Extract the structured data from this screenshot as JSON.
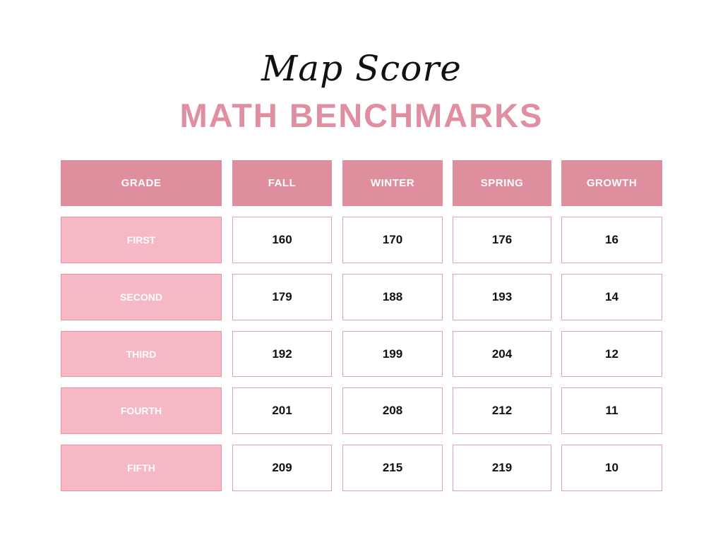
{
  "header": {
    "script_title": "Map Score",
    "title": "MATH BENCHMARKS"
  },
  "colors": {
    "header_bg": "#de8e9c",
    "label_bg": "#f5b8c4",
    "title": "#e08fa0"
  },
  "table": {
    "columns": [
      "GRADE",
      "FALL",
      "WINTER",
      "SPRING",
      "GROWTH"
    ],
    "rows": [
      [
        "FIRST",
        "160",
        "170",
        "176",
        "16"
      ],
      [
        "SECOND",
        "179",
        "188",
        "193",
        "14"
      ],
      [
        "THIRD",
        "192",
        "199",
        "204",
        "12"
      ],
      [
        "FOURTH",
        "201",
        "208",
        "212",
        "11"
      ],
      [
        "FIFTH",
        "209",
        "215",
        "219",
        "10"
      ]
    ]
  }
}
